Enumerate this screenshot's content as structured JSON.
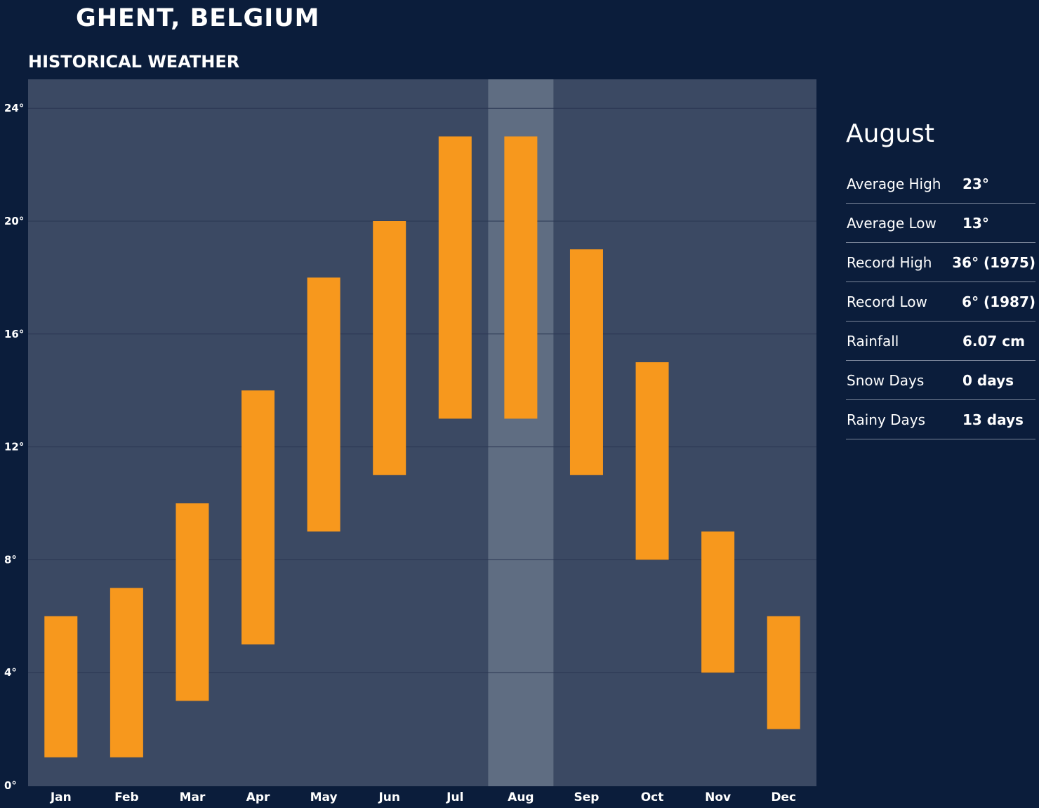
{
  "header": {
    "city": "GHENT, BELGIUM",
    "section": "HISTORICAL WEATHER"
  },
  "colors": {
    "background": "#0b1d3b",
    "plot_area": "#3b4963",
    "highlight": "#5f6d82",
    "bar": "#f7981d",
    "gridline": "#2a3652"
  },
  "chart_data": {
    "type": "bar",
    "subtype": "floating-range",
    "categories": [
      "Jan",
      "Feb",
      "Mar",
      "Apr",
      "May",
      "Jun",
      "Jul",
      "Aug",
      "Sep",
      "Oct",
      "Nov",
      "Dec"
    ],
    "series": [
      {
        "values_low": [
          1,
          1,
          3,
          5,
          9,
          11,
          13,
          13,
          11,
          8,
          4,
          2
        ],
        "values_high": [
          6,
          7,
          10,
          14,
          18,
          20,
          23,
          23,
          19,
          15,
          9,
          6
        ]
      }
    ],
    "ylim": [
      0,
      25
    ],
    "yticks": [
      0,
      4,
      8,
      12,
      16,
      20,
      24
    ],
    "ytick_labels": [
      "0°",
      "4°",
      "8°",
      "12°",
      "16°",
      "20°",
      "24°"
    ],
    "grid": true,
    "highlighted_category": "Aug"
  },
  "detail": {
    "month": "August",
    "stats": [
      {
        "label": "Average High",
        "value": "23°"
      },
      {
        "label": "Average Low",
        "value": "13°"
      },
      {
        "label": "Record High",
        "value": "36° (1975)"
      },
      {
        "label": "Record Low",
        "value": "6° (1987)"
      },
      {
        "label": "Rainfall",
        "value": "6.07 cm"
      },
      {
        "label": "Snow Days",
        "value": "0 days"
      },
      {
        "label": "Rainy Days",
        "value": "13 days"
      }
    ]
  }
}
